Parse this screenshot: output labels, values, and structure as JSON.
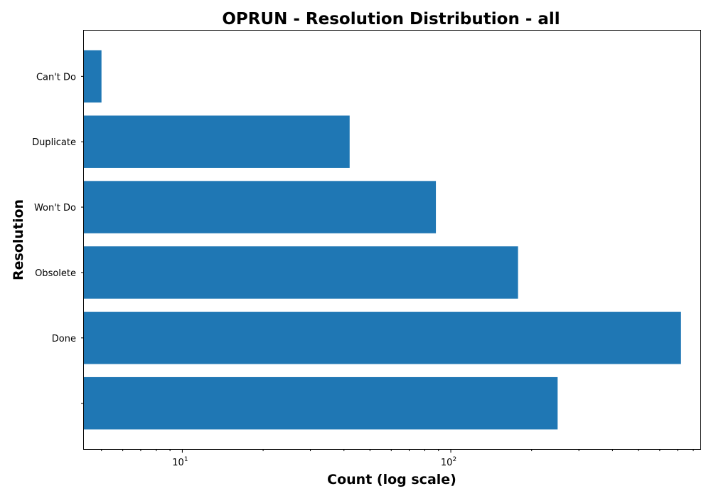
{
  "chart_data": {
    "type": "bar",
    "orientation": "horizontal",
    "title": "OPRUN - Resolution Distribution - all",
    "xlabel": "Count (log scale)",
    "ylabel": "Resolution",
    "x_scale": "log",
    "xlim": [
      4.3,
      850
    ],
    "x_ticks": [
      {
        "value": 10,
        "base": "10",
        "exp": "1"
      },
      {
        "value": 100,
        "base": "10",
        "exp": "2"
      }
    ],
    "categories": [
      "",
      "Done",
      "Obsolete",
      "Won't Do",
      "Duplicate",
      "Can't Do"
    ],
    "values": [
      250,
      720,
      178,
      88,
      42,
      5
    ],
    "bar_color": "#1f77b4",
    "grid": false,
    "legend": "none"
  }
}
